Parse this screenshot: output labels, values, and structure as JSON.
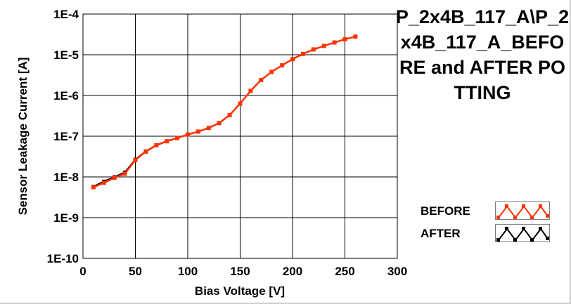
{
  "title": "P_2x4B_117_A\\P_2x4B_117_A_BEFORE and AFTER POTTING",
  "chart_data": {
    "type": "line",
    "xlabel": "Bias Voltage [V]",
    "ylabel": "Sensor Leakage Current [A]",
    "xlim": [
      0,
      300
    ],
    "ylim": [
      1e-10,
      0.0001
    ],
    "yscale": "log",
    "grid": true,
    "legend_placement": "bottom-right",
    "x_ticks": [
      "0",
      "50",
      "100",
      "150",
      "200",
      "250",
      "300"
    ],
    "y_ticks": [
      "1E-10",
      "1E-9",
      "1E-8",
      "1E-7",
      "1E-6",
      "1E-5",
      "1E-4"
    ],
    "series": [
      {
        "name": "BEFORE",
        "color": "#ff3300",
        "marker": "square",
        "x": [
          10,
          20,
          30,
          40,
          50,
          60,
          70,
          80,
          90,
          100,
          110,
          120,
          130,
          140,
          150,
          160,
          170,
          180,
          190,
          200,
          210,
          220,
          230,
          240,
          250,
          260
        ],
        "y": [
          5.6e-09,
          7.2e-09,
          9.5e-09,
          1.2e-08,
          2.6e-08,
          4.2e-08,
          6e-08,
          7.5e-08,
          9e-08,
          1.1e-07,
          1.3e-07,
          1.6e-07,
          2.1e-07,
          3.3e-07,
          6.3e-07,
          1.3e-06,
          2.4e-06,
          3.8e-06,
          5.5e-06,
          7.8e-06,
          1.05e-05,
          1.35e-05,
          1.65e-05,
          2e-05,
          2.4e-05,
          2.8e-05
        ]
      },
      {
        "name": "AFTER",
        "color": "#000000",
        "marker": "square",
        "x": [
          10,
          20,
          30,
          40,
          50,
          60,
          70,
          80,
          90,
          100,
          110,
          120,
          130,
          140,
          150,
          160,
          170,
          180,
          190,
          200,
          210,
          220,
          230,
          240,
          250,
          260
        ],
        "y": [
          5.8e-09,
          7.8e-09,
          1e-08,
          1.3e-08,
          2.7e-08,
          4.3e-08,
          6.1e-08,
          7.6e-08,
          9.1e-08,
          1.1e-07,
          1.3e-07,
          1.6e-07,
          2.1e-07,
          3.3e-07,
          6.3e-07,
          1.3e-06,
          2.4e-06,
          3.8e-06,
          5.5e-06,
          7.8e-06,
          1.05e-05,
          1.35e-05,
          1.65e-05,
          2e-05,
          2.4e-05,
          2.8e-05
        ]
      }
    ]
  }
}
